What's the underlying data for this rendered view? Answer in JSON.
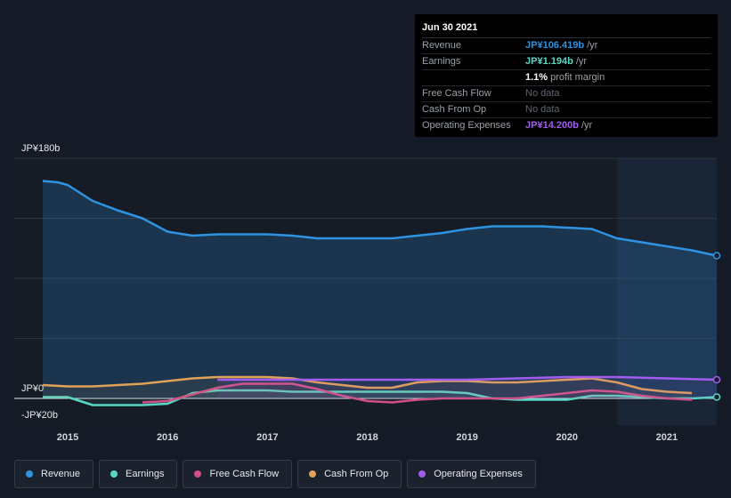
{
  "tooltip": {
    "date": "Jun 30 2021",
    "rows": [
      {
        "label": "Revenue",
        "value": "JP¥106.419b",
        "unit": "/yr",
        "color": "#2e93e0"
      },
      {
        "label": "Earnings",
        "value": "JP¥1.194b",
        "unit": "/yr",
        "color": "#57d8c4"
      },
      {
        "label": "",
        "value": "1.1%",
        "unit": "profit margin",
        "color": "#ffffff"
      },
      {
        "label": "Free Cash Flow",
        "value": "No data",
        "unit": "",
        "color": "#5f656e"
      },
      {
        "label": "Cash From Op",
        "value": "No data",
        "unit": "",
        "color": "#5f656e"
      },
      {
        "label": "Operating Expenses",
        "value": "JP¥14.200b",
        "unit": "/yr",
        "color": "#a35cf0"
      }
    ]
  },
  "legend": [
    {
      "label": "Revenue",
      "color": "#2e93e0"
    },
    {
      "label": "Earnings",
      "color": "#57d8c4"
    },
    {
      "label": "Free Cash Flow",
      "color": "#d14f8a"
    },
    {
      "label": "Cash From Op",
      "color": "#e0a257"
    },
    {
      "label": "Operating Expenses",
      "color": "#a35cf0"
    }
  ],
  "chart_data": {
    "type": "area",
    "ylim": [
      -20,
      180
    ],
    "y_tick_labels": [
      "JP¥180b",
      "JP¥0",
      "-JP¥20b"
    ],
    "x_tick_labels": [
      "2015",
      "2016",
      "2017",
      "2018",
      "2019",
      "2020",
      "2021"
    ],
    "xlim": [
      2014.6,
      2021.55
    ],
    "highlight_from": 2020.5,
    "series": [
      {
        "name": "Revenue",
        "color": "#2e93e0",
        "fill": true,
        "x": [
          2014.75,
          2014.9,
          2015.0,
          2015.25,
          2015.5,
          2015.75,
          2016.0,
          2016.25,
          2016.5,
          2016.75,
          2017.0,
          2017.25,
          2017.5,
          2017.75,
          2018.0,
          2018.25,
          2018.5,
          2018.75,
          2019.0,
          2019.25,
          2019.5,
          2019.75,
          2020.0,
          2020.25,
          2020.5,
          2020.75,
          2021.0,
          2021.25,
          2021.5
        ],
        "values": [
          163,
          162,
          160,
          148,
          141,
          135,
          125,
          122,
          123,
          123,
          123,
          122,
          120,
          120,
          120,
          120,
          122,
          124,
          127,
          129,
          129,
          129,
          128,
          127,
          120,
          117,
          114,
          111,
          107
        ]
      },
      {
        "name": "Earnings",
        "color": "#57d8c4",
        "fill": false,
        "x": [
          2014.75,
          2015.0,
          2015.25,
          2015.5,
          2015.75,
          2016.0,
          2016.25,
          2016.5,
          2016.75,
          2017.0,
          2017.25,
          2017.5,
          2017.75,
          2018.0,
          2018.25,
          2018.5,
          2018.75,
          2019.0,
          2019.25,
          2019.5,
          2019.75,
          2020.0,
          2020.25,
          2020.5,
          2020.75,
          2021.0,
          2021.25,
          2021.5
        ],
        "values": [
          1,
          1,
          -5,
          -5,
          -5,
          -4,
          4,
          6,
          6,
          6,
          5,
          5,
          5,
          5,
          5,
          5,
          5,
          4,
          0,
          -1,
          -1,
          -1,
          2,
          2,
          1,
          0,
          0,
          1
        ]
      },
      {
        "name": "Free Cash Flow",
        "color": "#d14f8a",
        "fill": false,
        "x": [
          2015.75,
          2016.0,
          2016.25,
          2016.5,
          2016.75,
          2017.0,
          2017.25,
          2017.5,
          2017.75,
          2018.0,
          2018.25,
          2018.5,
          2018.75,
          2019.0,
          2019.25,
          2019.5,
          2019.75,
          2020.0,
          2020.25,
          2020.5,
          2020.75,
          2021.0,
          2021.25
        ],
        "values": [
          -3,
          -2,
          3,
          8,
          11,
          11,
          11,
          7,
          2,
          -2,
          -3,
          -1,
          0,
          0,
          0,
          0,
          2,
          4,
          6,
          5,
          2,
          0,
          -1
        ]
      },
      {
        "name": "Cash From Op",
        "color": "#e0a257",
        "fill": false,
        "x": [
          2014.75,
          2015.0,
          2015.25,
          2015.5,
          2015.75,
          2016.0,
          2016.25,
          2016.5,
          2016.75,
          2017.0,
          2017.25,
          2017.5,
          2017.75,
          2018.0,
          2018.25,
          2018.5,
          2018.75,
          2019.0,
          2019.25,
          2019.5,
          2019.75,
          2020.0,
          2020.25,
          2020.5,
          2020.75,
          2021.0,
          2021.25
        ],
        "values": [
          10,
          9,
          9,
          10,
          11,
          13,
          15,
          16,
          16,
          16,
          15,
          12,
          10,
          8,
          8,
          12,
          13,
          13,
          12,
          12,
          13,
          14,
          15,
          12,
          7,
          5,
          4
        ]
      },
      {
        "name": "Operating Expenses",
        "color": "#a35cf0",
        "fill": false,
        "x": [
          2016.5,
          2017.0,
          2017.5,
          2018.0,
          2018.5,
          2019.0,
          2019.5,
          2020.0,
          2020.5,
          2021.0,
          2021.5
        ],
        "values": [
          14,
          14,
          14,
          14,
          14,
          14,
          15,
          16,
          16,
          15,
          14
        ]
      }
    ]
  }
}
